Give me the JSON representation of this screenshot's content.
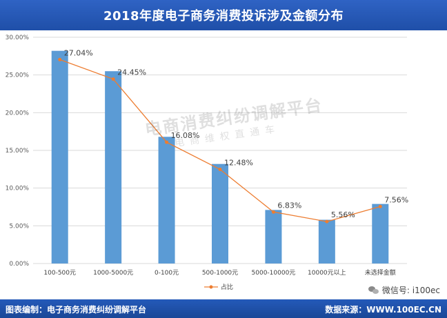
{
  "header": {
    "title": "2018年度电子商务消费投诉涉及金额分布"
  },
  "footer": {
    "left_text": "图表编制：电子商务消费纠纷调解平台",
    "right_text": "数据来源：WWW.100EC.CN"
  },
  "wechat": {
    "text": "微信号: i100ec",
    "icon": "wechat-icon"
  },
  "watermark": {
    "main": "电商消费纠纷调解平台",
    "sub": "电商维权直通车"
  },
  "colors": {
    "bar": "#5b9bd5",
    "line": "#ed7d31",
    "header": "#2f63c4"
  },
  "chart_data": {
    "type": "bar",
    "categories": [
      "100-500元",
      "1000-5000元",
      "0-100元",
      "500-1000元",
      "5000-10000元",
      "10000元以上",
      "未选择金额"
    ],
    "series": [
      {
        "name": "占比",
        "type": "line",
        "values": [
          27.04,
          24.45,
          16.08,
          12.48,
          6.83,
          5.56,
          7.56
        ]
      }
    ],
    "bar_values": [
      28.2,
      25.5,
      16.8,
      13.2,
      7.1,
      5.8,
      7.9
    ],
    "data_labels": [
      "27.04%",
      "24.45%",
      "16.08%",
      "12.48%",
      "6.83%",
      "5.56%",
      "7.56%"
    ],
    "y_ticks": [
      "0.00%",
      "5.00%",
      "10.00%",
      "15.00%",
      "20.00%",
      "25.00%",
      "30.00%"
    ],
    "ylim": [
      0,
      30
    ],
    "legend": {
      "position": "bottom",
      "label": "占比"
    },
    "grid": true
  }
}
